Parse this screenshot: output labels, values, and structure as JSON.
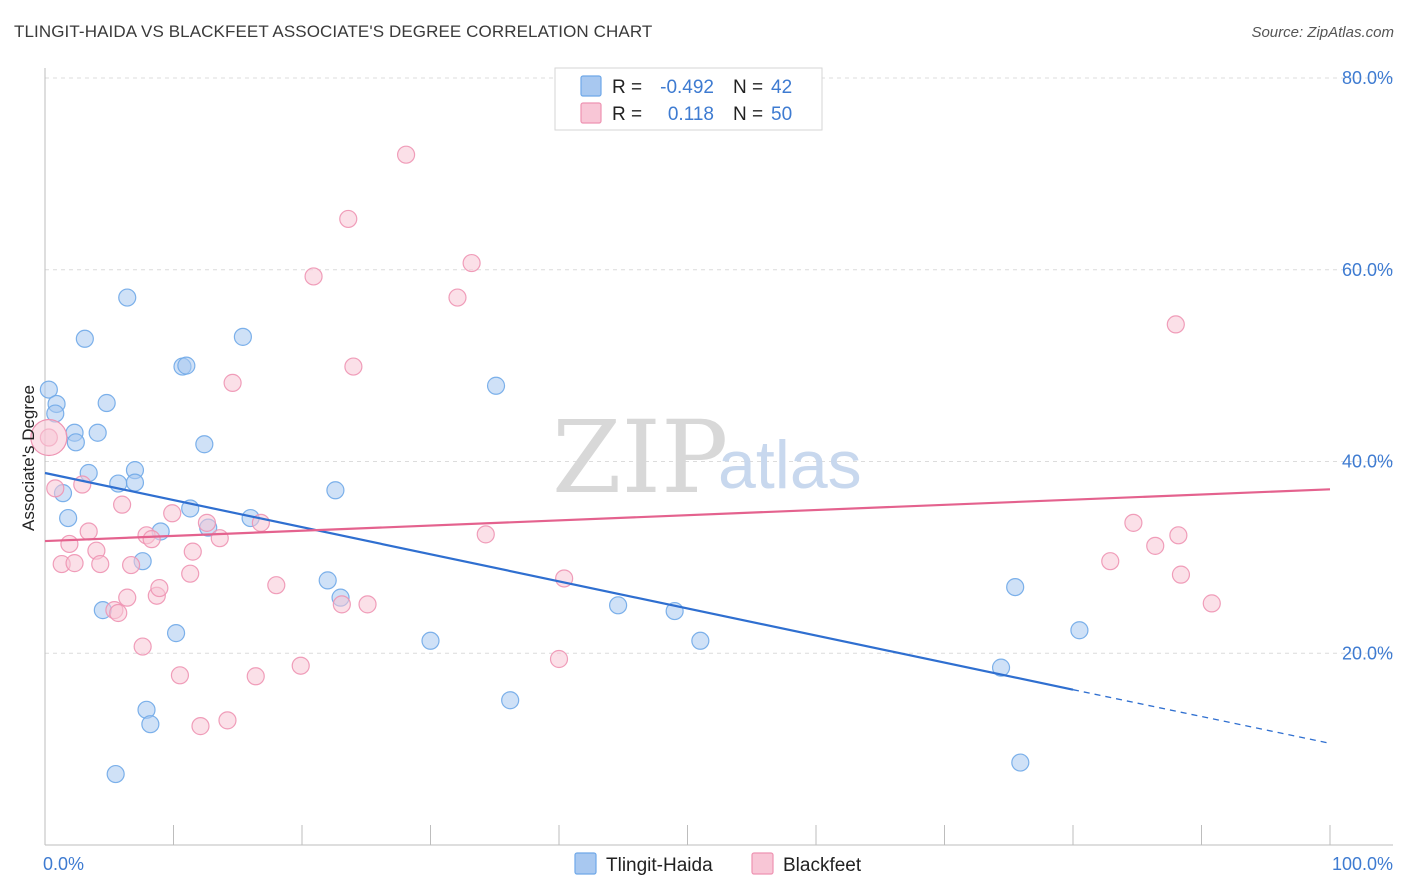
{
  "chart_data": {
    "type": "scatter",
    "title": "TLINGIT-HAIDA VS BLACKFEET ASSOCIATE'S DEGREE CORRELATION CHART",
    "source": "Source: ZipAtlas.com",
    "xlabel": "",
    "ylabel": "Associate's Degree",
    "xlim": [
      0,
      100
    ],
    "ylim": [
      0,
      80
    ],
    "x_tick_labels": [
      "0.0%",
      "100.0%"
    ],
    "y_ticks": [
      20,
      40,
      60,
      80
    ],
    "y_tick_labels": [
      "20.0%",
      "40.0%",
      "60.0%",
      "80.0%"
    ],
    "grid": true,
    "legend_position": "top-center",
    "watermark": {
      "zip": "ZIP",
      "atlas": "atlas"
    },
    "stats": [
      {
        "r_label": "R =",
        "r_value": "-0.492",
        "n_label": "N =",
        "n_value": "42"
      },
      {
        "r_label": "R =",
        "r_value": "0.118",
        "n_label": "N =",
        "n_value": "50"
      }
    ],
    "series": [
      {
        "name": "Tlingit-Haida",
        "color": "#6fa8e8",
        "fill": "#a8c8f0",
        "line_color": "#2f6fd0",
        "trend": {
          "x0": 0,
          "y0": 38.8,
          "x1": 80,
          "y1": 16.2,
          "x_dash_end": 100,
          "y_dash_end": 10.6
        },
        "points": [
          [
            0.3,
            47.5
          ],
          [
            0.9,
            46
          ],
          [
            0.8,
            45
          ],
          [
            2.3,
            43
          ],
          [
            2.4,
            42
          ],
          [
            4.1,
            43
          ],
          [
            3.1,
            52.8
          ],
          [
            4.8,
            46.1
          ],
          [
            3.4,
            38.8
          ],
          [
            1.4,
            36.7
          ],
          [
            1.8,
            34.1
          ],
          [
            5.7,
            37.7
          ],
          [
            7.0,
            39.1
          ],
          [
            7.0,
            37.8
          ],
          [
            6.4,
            57.1
          ],
          [
            10.7,
            49.9
          ],
          [
            11.0,
            50
          ],
          [
            12.4,
            41.8
          ],
          [
            15.4,
            53
          ],
          [
            11.3,
            35.1
          ],
          [
            9.0,
            32.7
          ],
          [
            12.7,
            33.1
          ],
          [
            16.0,
            34.1
          ],
          [
            7.6,
            29.6
          ],
          [
            4.5,
            24.5
          ],
          [
            10.2,
            22.1
          ],
          [
            22.0,
            27.6
          ],
          [
            22.6,
            37
          ],
          [
            23.0,
            25.8
          ],
          [
            7.9,
            14.1
          ],
          [
            8.2,
            12.6
          ],
          [
            5.5,
            7.4
          ],
          [
            30.0,
            21.3
          ],
          [
            36.2,
            15.1
          ],
          [
            35.1,
            47.9
          ],
          [
            44.6,
            25
          ],
          [
            49.0,
            24.4
          ],
          [
            51.0,
            21.3
          ],
          [
            75.9,
            8.6
          ],
          [
            74.4,
            18.5
          ],
          [
            75.5,
            26.9
          ],
          [
            80.5,
            22.4
          ]
        ]
      },
      {
        "name": "Blackfeet",
        "color": "#ee93b2",
        "fill": "#f8c6d6",
        "line_color": "#e4628e",
        "trend": {
          "x0": 0,
          "y0": 31.7,
          "x1": 100,
          "y1": 37.1
        },
        "points": [
          [
            0.3,
            42.5
          ],
          [
            0.8,
            37.2
          ],
          [
            1.3,
            29.3
          ],
          [
            1.9,
            31.4
          ],
          [
            2.3,
            29.4
          ],
          [
            2.9,
            37.6
          ],
          [
            3.4,
            32.7
          ],
          [
            4.0,
            30.7
          ],
          [
            4.3,
            29.3
          ],
          [
            5.4,
            24.5
          ],
          [
            5.7,
            24.2
          ],
          [
            6.0,
            35.5
          ],
          [
            6.4,
            25.8
          ],
          [
            6.7,
            29.2
          ],
          [
            7.6,
            20.7
          ],
          [
            7.9,
            32.3
          ],
          [
            8.3,
            31.9
          ],
          [
            8.7,
            26
          ],
          [
            8.9,
            26.8
          ],
          [
            9.9,
            34.6
          ],
          [
            10.5,
            17.7
          ],
          [
            11.3,
            28.3
          ],
          [
            11.5,
            30.6
          ],
          [
            12.1,
            12.4
          ],
          [
            12.6,
            33.6
          ],
          [
            13.6,
            32
          ],
          [
            14.2,
            13
          ],
          [
            14.6,
            48.2
          ],
          [
            16.4,
            17.6
          ],
          [
            16.8,
            33.6
          ],
          [
            18.0,
            27.1
          ],
          [
            19.9,
            18.7
          ],
          [
            20.9,
            59.3
          ],
          [
            23.1,
            25.1
          ],
          [
            23.6,
            65.3
          ],
          [
            24.0,
            49.9
          ],
          [
            25.1,
            25.1
          ],
          [
            28.1,
            72
          ],
          [
            32.1,
            57.1
          ],
          [
            33.2,
            60.7
          ],
          [
            34.3,
            32.4
          ],
          [
            40.4,
            27.8
          ],
          [
            40.0,
            19.4
          ],
          [
            82.9,
            29.6
          ],
          [
            84.7,
            33.6
          ],
          [
            86.4,
            31.2
          ],
          [
            88.2,
            32.3
          ],
          [
            88.4,
            28.2
          ],
          [
            90.8,
            25.2
          ],
          [
            88.0,
            54.3
          ]
        ]
      }
    ]
  }
}
